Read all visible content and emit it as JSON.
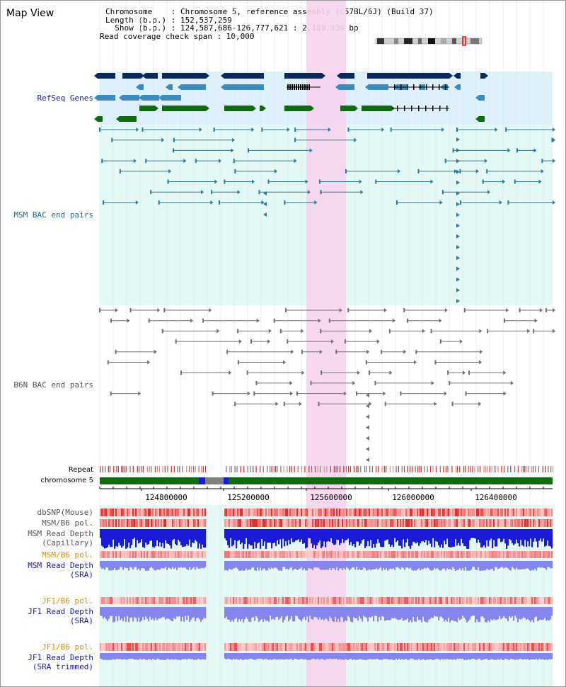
{
  "title": "Map View",
  "info": {
    "chromosome_line": "Chromosome    : Chromosome 5, reference assembly (C57BL/6J) (Build 37)",
    "length_line": "Length (b.p.) : 152,537,259",
    "show_line": "  Show (b.p.) : 124,587,686-126,777,621 : 2,189,936 bp",
    "coverage_line": "Read coverage check span : 10,000"
  },
  "tracks": {
    "refseq": "RefSeq Genes",
    "msm_bac": "MSM BAC end pairs",
    "b6n_bac": "B6N BAC end pairs",
    "repeat": "Repeat",
    "chromosome": "chromosome 5",
    "dbsnp": "dbSNP(Mouse)",
    "msm_pol1": "MSM/B6 pol.",
    "msm_depth_cap_1": "MSM Read Depth",
    "msm_depth_cap_2": "(Capillary)",
    "msm_pol2": "MSM/B6 pol.",
    "msm_depth_sra_1": "MSM Read Depth",
    "msm_depth_sra_2": "(SRA)",
    "jf1_pol1": "JF1/B6 pol.",
    "jf1_depth_sra_1": "JF1 Read Depth",
    "jf1_depth_sra_2": "(SRA)",
    "jf1_pol2": "JF1/B6 pol.",
    "jf1_depth_trim_1": "JF1 Read Depth",
    "jf1_depth_trim_2": "(SRA trimmed)"
  },
  "axis": {
    "ticks": [
      "124800000",
      "125200000",
      "125600000",
      "126000000",
      "126400000"
    ]
  },
  "colors": {
    "refseq_dark": "#0a2a5a",
    "refseq_mid": "#3d8bbd",
    "refseq_green": "#0f6b0f",
    "msm_line": "#2a7a9a",
    "b6n_line": "#707070",
    "highlight": "#f7d3ef",
    "bg_refseq": "#def0f9",
    "bg_msm": "#e4f9f6",
    "bg_b6n": "#ffffff",
    "chrom": "#0f6b0f",
    "depth_blue": "#1a1ad8",
    "depth_lav": "#8585ee"
  }
}
